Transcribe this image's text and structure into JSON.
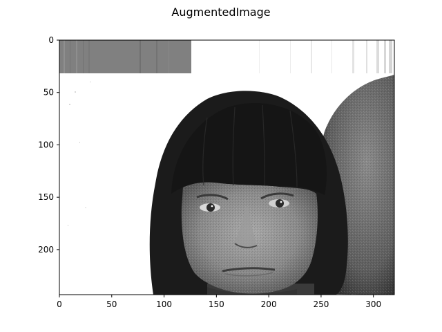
{
  "figure": {
    "title": "AugmentedImage",
    "image_description": "grayscale photo of a woman with dark bob haircut and bangs, white background, textured gray wall on right; top-left rectangular gray strip overlay",
    "x_axis": {
      "ticks": [
        0,
        50,
        100,
        150,
        200,
        250,
        300
      ],
      "range": [
        0,
        320
      ]
    },
    "y_axis": {
      "ticks": [
        0,
        50,
        100,
        150,
        200
      ],
      "range": [
        0,
        243
      ]
    },
    "colors": {
      "hair": "#1a1a1a",
      "skin": "#8c8c8c",
      "wall": "#6e6e6e",
      "overlay_strip": "#808080",
      "background": "#ffffff"
    }
  }
}
